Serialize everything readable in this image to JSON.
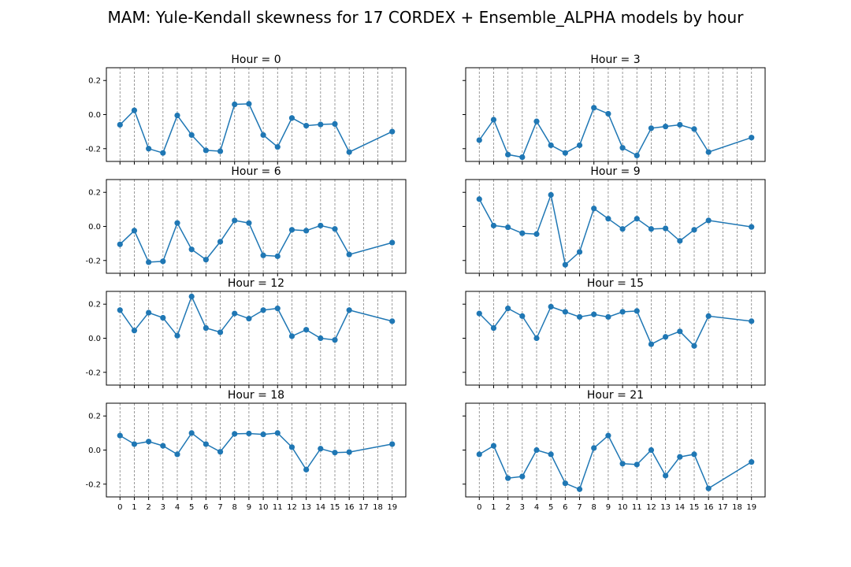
{
  "suptitle": "MAM: Yule-Kendall skewness for 17 CORDEX + Ensemble_ALPHA models by hour",
  "chart_data": [
    {
      "type": "line",
      "title": "Hour = 0",
      "x": [
        0,
        1,
        2,
        3,
        4,
        5,
        6,
        7,
        8,
        9,
        10,
        11,
        12,
        13,
        14,
        15,
        16,
        19
      ],
      "values": [
        -0.06,
        0.025,
        -0.2,
        -0.225,
        -0.005,
        -0.12,
        -0.21,
        -0.215,
        0.06,
        0.063,
        -0.12,
        -0.19,
        -0.02,
        -0.065,
        -0.058,
        -0.055,
        -0.22,
        -0.1
      ],
      "xticks": [
        0,
        1,
        2,
        3,
        4,
        5,
        6,
        7,
        8,
        9,
        10,
        11,
        12,
        13,
        14,
        15,
        16,
        17,
        18,
        19
      ],
      "yticks": [
        -0.2,
        0.0,
        0.2
      ],
      "ylim": [
        -0.275,
        0.275
      ],
      "grid": "vertical dashed"
    },
    {
      "type": "line",
      "title": "Hour = 3",
      "x": [
        0,
        1,
        2,
        3,
        4,
        5,
        6,
        7,
        8,
        9,
        10,
        11,
        12,
        13,
        14,
        15,
        16,
        19
      ],
      "values": [
        -0.15,
        -0.03,
        -0.235,
        -0.25,
        -0.04,
        -0.18,
        -0.225,
        -0.18,
        0.04,
        0.005,
        -0.195,
        -0.24,
        -0.08,
        -0.07,
        -0.06,
        -0.085,
        -0.22,
        -0.135
      ],
      "xticks": [
        0,
        1,
        2,
        3,
        4,
        5,
        6,
        7,
        8,
        9,
        10,
        11,
        12,
        13,
        14,
        15,
        16,
        17,
        18,
        19
      ],
      "yticks": [
        -0.2,
        0.0,
        0.2
      ],
      "ylim": [
        -0.275,
        0.275
      ],
      "grid": "vertical dashed"
    },
    {
      "type": "line",
      "title": "Hour = 6",
      "x": [
        0,
        1,
        2,
        3,
        4,
        5,
        6,
        7,
        8,
        9,
        10,
        11,
        12,
        13,
        14,
        15,
        16,
        19
      ],
      "values": [
        -0.105,
        -0.025,
        -0.21,
        -0.205,
        0.02,
        -0.135,
        -0.195,
        -0.09,
        0.035,
        0.02,
        -0.17,
        -0.175,
        -0.02,
        -0.025,
        0.005,
        -0.015,
        -0.165,
        -0.095
      ],
      "xticks": [
        0,
        1,
        2,
        3,
        4,
        5,
        6,
        7,
        8,
        9,
        10,
        11,
        12,
        13,
        14,
        15,
        16,
        17,
        18,
        19
      ],
      "yticks": [
        -0.2,
        0.0,
        0.2
      ],
      "ylim": [
        -0.275,
        0.275
      ],
      "grid": "vertical dashed"
    },
    {
      "type": "line",
      "title": "Hour = 9",
      "x": [
        0,
        1,
        2,
        3,
        4,
        5,
        6,
        7,
        8,
        9,
        10,
        11,
        12,
        13,
        14,
        15,
        16,
        19
      ],
      "values": [
        0.16,
        0.005,
        -0.005,
        -0.04,
        -0.045,
        0.185,
        -0.225,
        -0.15,
        0.105,
        0.045,
        -0.015,
        0.045,
        -0.015,
        -0.012,
        -0.085,
        -0.02,
        0.035,
        -0.003
      ],
      "xticks": [
        0,
        1,
        2,
        3,
        4,
        5,
        6,
        7,
        8,
        9,
        10,
        11,
        12,
        13,
        14,
        15,
        16,
        17,
        18,
        19
      ],
      "yticks": [
        -0.2,
        0.0,
        0.2
      ],
      "ylim": [
        -0.275,
        0.275
      ],
      "grid": "vertical dashed"
    },
    {
      "type": "line",
      "title": "Hour = 12",
      "x": [
        0,
        1,
        2,
        3,
        4,
        5,
        6,
        7,
        8,
        9,
        10,
        11,
        12,
        13,
        14,
        15,
        16,
        19
      ],
      "values": [
        0.165,
        0.045,
        0.15,
        0.12,
        0.015,
        0.245,
        0.06,
        0.035,
        0.145,
        0.115,
        0.165,
        0.175,
        0.012,
        0.05,
        0.0,
        -0.01,
        0.165,
        0.1
      ],
      "xticks": [
        0,
        1,
        2,
        3,
        4,
        5,
        6,
        7,
        8,
        9,
        10,
        11,
        12,
        13,
        14,
        15,
        16,
        17,
        18,
        19
      ],
      "yticks": [
        -0.2,
        0.0,
        0.2
      ],
      "ylim": [
        -0.275,
        0.275
      ],
      "grid": "vertical dashed"
    },
    {
      "type": "line",
      "title": "Hour = 15",
      "x": [
        0,
        1,
        2,
        3,
        4,
        5,
        6,
        7,
        8,
        9,
        10,
        11,
        12,
        13,
        14,
        15,
        16,
        19
      ],
      "values": [
        0.145,
        0.06,
        0.175,
        0.13,
        0.0,
        0.185,
        0.155,
        0.125,
        0.14,
        0.125,
        0.155,
        0.16,
        -0.035,
        0.008,
        0.04,
        -0.045,
        0.13,
        0.1
      ],
      "xticks": [
        0,
        1,
        2,
        3,
        4,
        5,
        6,
        7,
        8,
        9,
        10,
        11,
        12,
        13,
        14,
        15,
        16,
        17,
        18,
        19
      ],
      "yticks": [
        -0.2,
        0.0,
        0.2
      ],
      "ylim": [
        -0.275,
        0.275
      ],
      "grid": "vertical dashed"
    },
    {
      "type": "line",
      "title": "Hour = 18",
      "x": [
        0,
        1,
        2,
        3,
        4,
        5,
        6,
        7,
        8,
        9,
        10,
        11,
        12,
        13,
        14,
        15,
        16,
        19
      ],
      "values": [
        0.085,
        0.035,
        0.05,
        0.025,
        -0.025,
        0.1,
        0.035,
        -0.01,
        0.095,
        0.097,
        0.092,
        0.1,
        0.017,
        -0.115,
        0.008,
        -0.015,
        -0.012,
        0.035
      ],
      "xticks": [
        0,
        1,
        2,
        3,
        4,
        5,
        6,
        7,
        8,
        9,
        10,
        11,
        12,
        13,
        14,
        15,
        16,
        17,
        18,
        19
      ],
      "yticks": [
        -0.2,
        0.0,
        0.2
      ],
      "ylim": [
        -0.275,
        0.275
      ],
      "grid": "vertical dashed"
    },
    {
      "type": "line",
      "title": "Hour = 21",
      "x": [
        0,
        1,
        2,
        3,
        4,
        5,
        6,
        7,
        8,
        9,
        10,
        11,
        12,
        13,
        14,
        15,
        16,
        19
      ],
      "values": [
        -0.025,
        0.025,
        -0.165,
        -0.155,
        0.0,
        -0.025,
        -0.195,
        -0.23,
        0.012,
        0.085,
        -0.08,
        -0.085,
        0.0,
        -0.15,
        -0.04,
        -0.025,
        -0.225,
        -0.07
      ],
      "xticks": [
        0,
        1,
        2,
        3,
        4,
        5,
        6,
        7,
        8,
        9,
        10,
        11,
        12,
        13,
        14,
        15,
        16,
        17,
        18,
        19
      ],
      "yticks": [
        -0.2,
        0.0,
        0.2
      ],
      "ylim": [
        -0.275,
        0.275
      ],
      "grid": "vertical dashed"
    }
  ],
  "colors": {
    "series": "#1f77b4",
    "grid": "#808080"
  }
}
